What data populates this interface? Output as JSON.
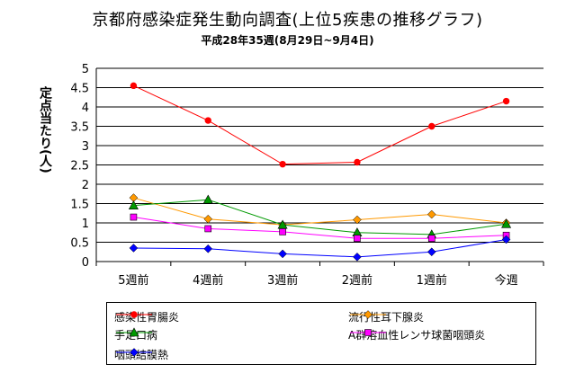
{
  "chart_data": {
    "type": "line",
    "title": "京都府感染症発生動向調査(上位5疾患の推移グラフ)",
    "subtitle": "平成28年35週(8月29日~9月4日)",
    "ylabel": "定点当たり(人)",
    "xlabel": "",
    "ylim": [
      0,
      5
    ],
    "yticks": [
      "0",
      "0.5",
      "1",
      "1.5",
      "2",
      "2.5",
      "3",
      "3.5",
      "4",
      "4.5",
      "5"
    ],
    "categories": [
      "5週前",
      "4週前",
      "3週前",
      "2週前",
      "1週前",
      "今週"
    ],
    "grid": true,
    "legend_position": "bottom",
    "series": [
      {
        "name": "感染性胃腸炎",
        "color": "#ff0000",
        "marker": "circle",
        "values": [
          4.55,
          3.65,
          2.52,
          2.57,
          3.5,
          4.15
        ]
      },
      {
        "name": "流行性耳下腺炎",
        "color": "#ff9900",
        "marker": "diamond",
        "values": [
          1.65,
          1.1,
          0.95,
          1.08,
          1.22,
          1.0
        ]
      },
      {
        "name": "手足口病",
        "color": "#009900",
        "marker": "triangle",
        "values": [
          1.45,
          1.6,
          0.95,
          0.75,
          0.7,
          0.97
        ]
      },
      {
        "name": "A群溶血性レンサ球菌咽頭炎",
        "color": "#ff00ff",
        "marker": "square",
        "values": [
          1.15,
          0.85,
          0.77,
          0.6,
          0.6,
          0.68
        ]
      },
      {
        "name": "咽頭結膜熱",
        "color": "#0000ff",
        "marker": "diamond",
        "values": [
          0.35,
          0.33,
          0.2,
          0.12,
          0.25,
          0.57
        ]
      }
    ]
  }
}
